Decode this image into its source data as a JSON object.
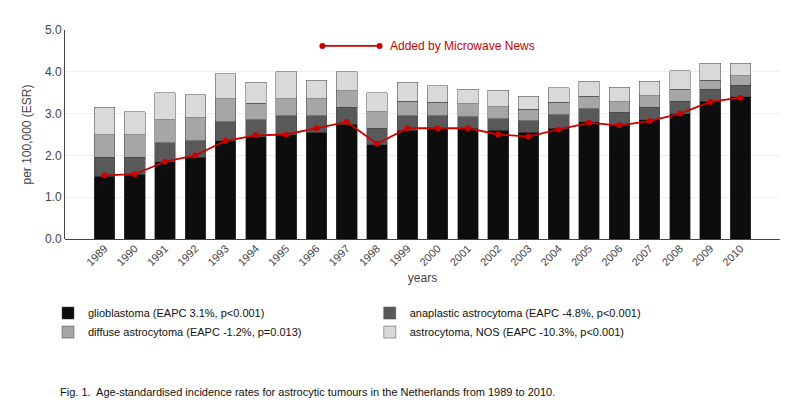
{
  "chart_data": {
    "type": "bar",
    "stacked": true,
    "categories": [
      "1989",
      "1990",
      "1991",
      "1992",
      "1993",
      "1994",
      "1995",
      "1996",
      "1997",
      "1998",
      "1999",
      "2000",
      "2001",
      "2002",
      "2003",
      "2004",
      "2005",
      "2006",
      "2007",
      "2008",
      "2009",
      "2010"
    ],
    "series": [
      {
        "name": "glioblastoma (EAPC 3.1%, p<0.001)",
        "color": "#0d0d0d",
        "values": [
          1.5,
          1.55,
          1.85,
          1.95,
          2.35,
          2.45,
          2.5,
          2.55,
          2.75,
          2.25,
          2.6,
          2.65,
          2.65,
          2.6,
          2.55,
          2.65,
          2.8,
          2.75,
          2.85,
          3.0,
          3.3,
          3.4
        ]
      },
      {
        "name": "anaplastic astrocytoma (EAPC -4.8%, p<0.001)",
        "color": "#595959",
        "values": [
          0.45,
          0.4,
          0.45,
          0.4,
          0.45,
          0.4,
          0.45,
          0.4,
          0.4,
          0.4,
          0.35,
          0.3,
          0.28,
          0.28,
          0.28,
          0.32,
          0.32,
          0.28,
          0.3,
          0.3,
          0.28,
          0.28
        ]
      },
      {
        "name": "diffuse astrocytoma (EAPC -1.2%, p=0.013)",
        "color": "#a6a6a6",
        "values": [
          0.55,
          0.55,
          0.55,
          0.55,
          0.55,
          0.4,
          0.4,
          0.4,
          0.4,
          0.4,
          0.35,
          0.32,
          0.3,
          0.28,
          0.28,
          0.3,
          0.3,
          0.25,
          0.28,
          0.28,
          0.22,
          0.22
        ]
      },
      {
        "name": "astrocytoma, NOS (EAPC -10.3%, p<0.001)",
        "color": "#d9d9d9",
        "values": [
          0.65,
          0.55,
          0.65,
          0.55,
          0.6,
          0.5,
          0.65,
          0.45,
          0.45,
          0.45,
          0.45,
          0.4,
          0.35,
          0.4,
          0.3,
          0.35,
          0.35,
          0.35,
          0.35,
          0.45,
          0.4,
          0.3
        ]
      },
      {
        "type": "line",
        "color": "#cc0000",
        "marker": "o",
        "values": [
          1.52,
          1.55,
          1.85,
          2.0,
          2.35,
          2.48,
          2.5,
          2.65,
          2.8,
          2.28,
          2.65,
          2.65,
          2.65,
          2.5,
          2.45,
          2.62,
          2.78,
          2.72,
          2.82,
          3.0,
          3.28,
          3.38
        ]
      }
    ],
    "xlabel": "years",
    "ylabel": "per 100,000 (ESR)",
    "ylim": [
      0.0,
      5.0
    ],
    "yticks": [
      {
        "value": 0,
        "label": "0.0"
      },
      {
        "value": 1,
        "label": "1.0"
      },
      {
        "value": 2,
        "label": "2.0"
      },
      {
        "value": 3,
        "label": "3.0"
      },
      {
        "value": 4,
        "label": "4.0"
      },
      {
        "value": 5,
        "label": "5.0"
      }
    ],
    "grid": true,
    "legend": "bottom",
    "annotations": [
      "Added by Microwave News"
    ],
    "caption": "Fig. 1.  Age-standardised incidence rates for astrocytic tumours in the Netherlands from 1989 to 2010."
  }
}
